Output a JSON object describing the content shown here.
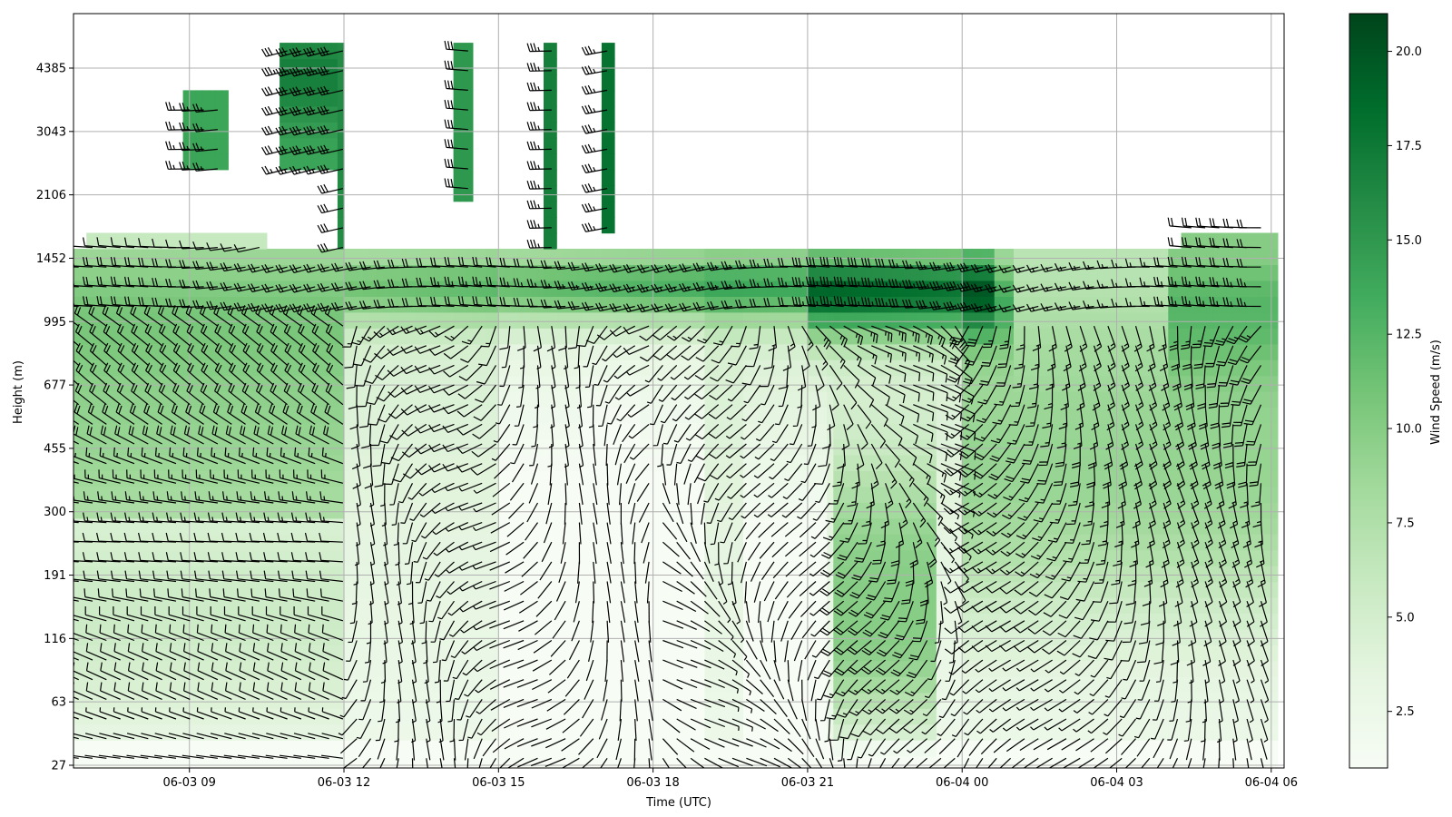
{
  "chart_data": {
    "type": "heatmap",
    "subtype": "wind-speed heatmap with wind barbs (time-height)",
    "xlabel": "Time (UTC)",
    "ylabel": "Height (m)",
    "x_ticks": [
      "06-03 09",
      "06-03 12",
      "06-03 15",
      "06-03 18",
      "06-03 21",
      "06-04 00",
      "06-04 03",
      "06-04 06"
    ],
    "x_tick_hours": [
      3,
      6,
      9,
      12,
      15,
      18,
      21,
      24
    ],
    "x_range_hours": [
      0.75,
      24.25
    ],
    "y_ticks": [
      "27",
      "63",
      "116",
      "191",
      "300",
      "455",
      "677",
      "995",
      "1452",
      "2106",
      "3043",
      "4385"
    ],
    "y_levels": 12,
    "colorbar": {
      "label": "Wind Speed (m/s)",
      "range": [
        1.0,
        21.0
      ],
      "ticks": [
        "2.5",
        "5.0",
        "7.5",
        "10.0",
        "12.5",
        "15.0",
        "17.5",
        "20.0"
      ],
      "colormap": "Greens",
      "color_low": "#f7fcf5",
      "color_high": "#00441b"
    },
    "grid": true,
    "barb_color": "#000000"
  }
}
